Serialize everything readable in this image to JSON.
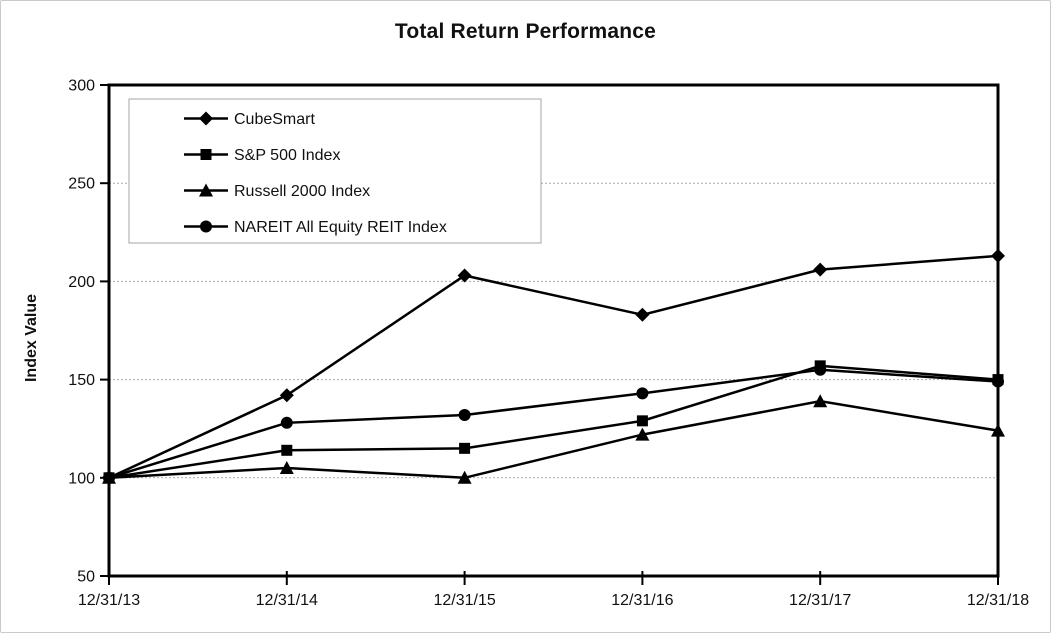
{
  "title": "Total Return Performance",
  "chart_data": {
    "type": "line",
    "title": "Total Return Performance",
    "xlabel": "",
    "ylabel": "Index Value",
    "x_categories": [
      "12/31/13",
      "12/31/14",
      "12/31/15",
      "12/31/16",
      "12/31/17",
      "12/31/18"
    ],
    "ylim": [
      50,
      300
    ],
    "yticks": [
      50,
      100,
      150,
      200,
      250,
      300
    ],
    "grid": "horizontal-dotted",
    "legend_position": "top-left-inside",
    "series": [
      {
        "name": "CubeSmart",
        "marker": "diamond",
        "color": "#000000",
        "values": [
          100,
          142,
          203,
          183,
          206,
          213
        ]
      },
      {
        "name": "S&P 500 Index",
        "marker": "square",
        "color": "#000000",
        "values": [
          100,
          114,
          115,
          129,
          157,
          150
        ]
      },
      {
        "name": "Russell 2000 Index",
        "marker": "triangle",
        "color": "#000000",
        "values": [
          100,
          105,
          100,
          122,
          139,
          124
        ]
      },
      {
        "name": "NAREIT All Equity REIT Index",
        "marker": "circle",
        "color": "#000000",
        "values": [
          100,
          128,
          132,
          143,
          155,
          149
        ]
      }
    ],
    "colors": {
      "line": "#000000",
      "gridline": "#aaaaaa",
      "axis_frame": "#000000",
      "legend_border": "#a6a6a6",
      "background": "#ffffff",
      "outer_border": "#c9c9c9"
    }
  }
}
